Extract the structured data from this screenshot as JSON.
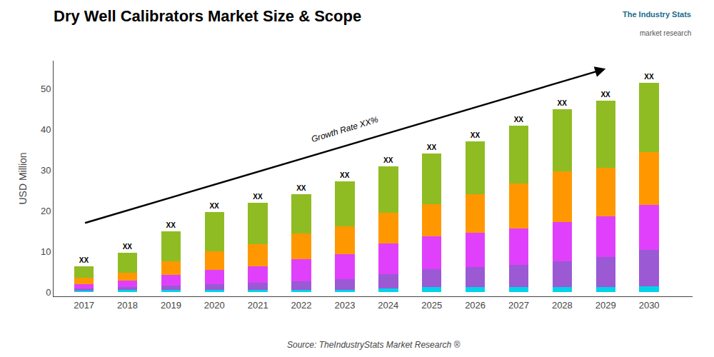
{
  "chart_data": {
    "type": "bar",
    "stacked": true,
    "title": "Dry Well Calibrators Market Size & Scope",
    "ylabel": "USD Million",
    "x": [
      2017,
      2018,
      2019,
      2020,
      2021,
      2022,
      2023,
      2024,
      2025,
      2026,
      2027,
      2028,
      2029,
      2030
    ],
    "xlim": [
      2016.3,
      2031.0
    ],
    "xticks": [
      2017,
      2018,
      2019,
      2020,
      2021,
      2022,
      2023,
      2024,
      2025,
      2026,
      2027,
      2028,
      2029,
      2030
    ],
    "ylim": [
      -1,
      57
    ],
    "yticks": [
      0,
      10,
      20,
      30,
      40,
      50
    ],
    "grid": false,
    "series": [
      {
        "color": "#00d4e8",
        "values": [
          0.4,
          0.5,
          0.5,
          0.5,
          0.5,
          0.5,
          0.5,
          1.0,
          1.2,
          1.2,
          1.2,
          1.2,
          1.2,
          1.5
        ]
      },
      {
        "color": "#9b59d4",
        "values": [
          0.6,
          0.8,
          1.2,
          1.5,
          1.8,
          2.2,
          2.8,
          3.5,
          4.5,
          5.0,
          5.5,
          6.5,
          7.5,
          9.0
        ]
      },
      {
        "color": "#e040fb",
        "values": [
          1.0,
          1.5,
          2.5,
          3.5,
          4.0,
          5.5,
          6.0,
          7.5,
          8.0,
          8.5,
          9.0,
          9.5,
          10.0,
          11.0
        ]
      },
      {
        "color": "#ff9800",
        "values": [
          1.5,
          2.0,
          3.5,
          4.5,
          5.5,
          6.2,
          7.0,
          7.5,
          8.0,
          9.5,
          11.0,
          12.5,
          12.0,
          13.0
        ]
      },
      {
        "color": "#8fbc22",
        "values": [
          2.8,
          5.0,
          7.3,
          9.8,
          10.2,
          9.8,
          11.0,
          11.5,
          12.5,
          13.0,
          14.3,
          15.3,
          16.5,
          17.0
        ]
      }
    ],
    "bar_labels": [
      "XX",
      "XX",
      "XX",
      "XX",
      "XX",
      "XX",
      "XX",
      "XX",
      "XX",
      "XX",
      "XX",
      "XX",
      "XX",
      "XX"
    ],
    "growth_label": "Growth Rate XX%",
    "source": "Source: TheIndustryStats Market Research ®",
    "logo": [
      "The Industry Stats",
      "market research"
    ]
  }
}
